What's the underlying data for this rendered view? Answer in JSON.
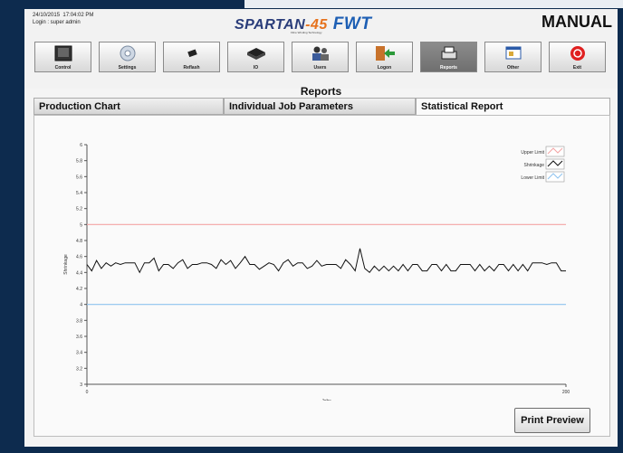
{
  "header": {
    "date": "24/10/2015",
    "time": "17:04:02 PM",
    "login": "Login : super admin",
    "mode": "MANUAL",
    "logo": {
      "name": "SPARTAN",
      "model": "-45",
      "brand": "FWT",
      "tagline": "Fibre Winding Technology"
    }
  },
  "toolbar": {
    "buttons": [
      {
        "label": "Control",
        "icon": "control-panel-icon",
        "active": false
      },
      {
        "label": "Settings",
        "icon": "settings-gear-icon",
        "active": false
      },
      {
        "label": "Reflash",
        "icon": "reflash-chip-icon",
        "active": false
      },
      {
        "label": "IO",
        "icon": "io-device-icon",
        "active": false
      },
      {
        "label": "Users",
        "icon": "users-icon",
        "active": false
      },
      {
        "label": "Logon",
        "icon": "logon-door-icon",
        "active": false
      },
      {
        "label": "Reports",
        "icon": "reports-printer-icon",
        "active": true
      },
      {
        "label": "Other",
        "icon": "other-window-icon",
        "active": false
      },
      {
        "label": "Exit",
        "icon": "exit-power-icon",
        "active": false
      }
    ]
  },
  "page_title": "Reports",
  "tabs": [
    {
      "label": "Production Chart",
      "selected": false
    },
    {
      "label": "Individual Job Parameters",
      "selected": false
    },
    {
      "label": "Statistical Report",
      "selected": true
    }
  ],
  "print_button": "Print Preview",
  "colors": {
    "upper_limit": "#f4a4a4",
    "lower_limit": "#8ec3ef",
    "shrinkage": "#111111",
    "active_button": "#7a7a7a"
  },
  "chart_data": {
    "type": "line",
    "xlabel": "Jobs",
    "ylabel": "Shrinkage",
    "xlim": [
      0,
      200
    ],
    "ylim": [
      3,
      6
    ],
    "xticks": [
      "0",
      "200"
    ],
    "yticks": [
      "3",
      "3.2",
      "3.4",
      "3.6",
      "3.8",
      "4",
      "4.2",
      "4.4",
      "4.6",
      "4.8",
      "5",
      "5.2",
      "5.4",
      "5.6",
      "5.8",
      "6"
    ],
    "legend_position": "top-right",
    "series": [
      {
        "name": "Upper Limit",
        "x": [
          0,
          200
        ],
        "values": [
          5,
          5
        ]
      },
      {
        "name": "Shrinkage",
        "x": [
          0,
          2,
          4,
          6,
          8,
          10,
          12,
          14,
          16,
          18,
          20,
          22,
          24,
          26,
          28,
          30,
          32,
          34,
          36,
          38,
          40,
          42,
          44,
          46,
          48,
          50,
          52,
          54,
          56,
          58,
          60,
          62,
          64,
          66,
          68,
          70,
          72,
          74,
          76,
          78,
          80,
          82,
          84,
          86,
          88,
          90,
          92,
          94,
          96,
          98,
          100,
          102,
          104,
          106,
          108,
          110,
          112,
          114,
          116,
          118,
          120,
          122,
          124,
          126,
          128,
          130,
          132,
          134,
          136,
          138,
          140,
          142,
          144,
          146,
          148,
          150,
          152,
          154,
          156,
          158,
          160,
          162,
          164,
          166,
          168,
          170,
          172,
          174,
          176,
          178,
          180,
          182,
          184,
          186,
          188,
          190,
          192,
          194,
          196,
          198,
          200
        ],
        "values": [
          4.5,
          4.42,
          4.55,
          4.45,
          4.52,
          4.48,
          4.52,
          4.5,
          4.52,
          4.52,
          4.52,
          4.4,
          4.52,
          4.52,
          4.58,
          4.42,
          4.5,
          4.5,
          4.45,
          4.52,
          4.56,
          4.45,
          4.5,
          4.5,
          4.52,
          4.52,
          4.5,
          4.45,
          4.56,
          4.5,
          4.55,
          4.45,
          4.52,
          4.6,
          4.5,
          4.5,
          4.44,
          4.48,
          4.52,
          4.5,
          4.42,
          4.52,
          4.56,
          4.48,
          4.52,
          4.52,
          4.45,
          4.48,
          4.55,
          4.48,
          4.5,
          4.5,
          4.5,
          4.45,
          4.56,
          4.5,
          4.42,
          4.7,
          4.45,
          4.4,
          4.48,
          4.42,
          4.48,
          4.42,
          4.48,
          4.42,
          4.5,
          4.42,
          4.5,
          4.5,
          4.42,
          4.42,
          4.5,
          4.5,
          4.42,
          4.5,
          4.42,
          4.42,
          4.5,
          4.5,
          4.5,
          4.42,
          4.5,
          4.42,
          4.48,
          4.42,
          4.5,
          4.5,
          4.42,
          4.5,
          4.42,
          4.5,
          4.42,
          4.52,
          4.52,
          4.52,
          4.5,
          4.52,
          4.52,
          4.42,
          4.42
        ]
      },
      {
        "name": "Lower Limit",
        "x": [
          0,
          200
        ],
        "values": [
          4,
          4
        ]
      }
    ]
  }
}
